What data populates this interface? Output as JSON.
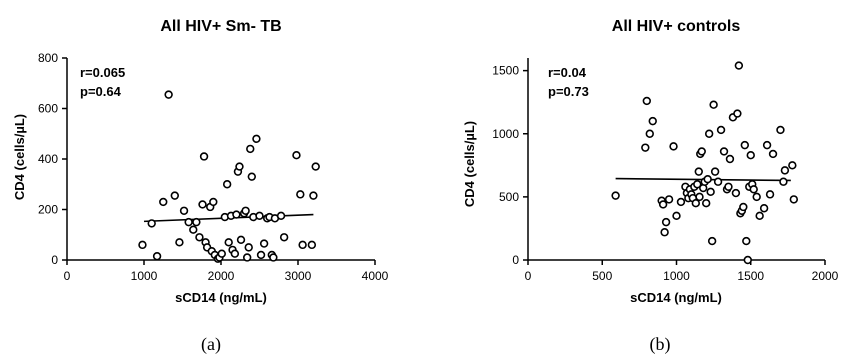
{
  "chart_data": [
    {
      "type": "scatter",
      "title": "All HIV+ Sm- TB",
      "xlabel": "sCD14 (ng/mL)",
      "ylabel": "CD4 (cells/µL)",
      "xlim": [
        0,
        4000
      ],
      "ylim": [
        0,
        800
      ],
      "xticks": [
        0,
        1000,
        2000,
        3000,
        4000
      ],
      "yticks": [
        0,
        200,
        400,
        600,
        800
      ],
      "stats": [
        "r=0.065",
        "p=0.64"
      ],
      "panel_label": "(a)",
      "regression": {
        "x": [
          1000,
          3200
        ],
        "y": [
          153,
          180
        ]
      },
      "points": [
        [
          980,
          60
        ],
        [
          1100,
          145
        ],
        [
          1170,
          15
        ],
        [
          1250,
          230
        ],
        [
          1320,
          655
        ],
        [
          1400,
          255
        ],
        [
          1460,
          70
        ],
        [
          1520,
          195
        ],
        [
          1580,
          150
        ],
        [
          1640,
          120
        ],
        [
          1680,
          150
        ],
        [
          1720,
          90
        ],
        [
          1760,
          220
        ],
        [
          1780,
          410
        ],
        [
          1800,
          70
        ],
        [
          1820,
          50
        ],
        [
          1860,
          210
        ],
        [
          1880,
          35
        ],
        [
          1900,
          230
        ],
        [
          1920,
          20
        ],
        [
          1960,
          5
        ],
        [
          1980,
          10
        ],
        [
          2010,
          25
        ],
        [
          2050,
          170
        ],
        [
          2080,
          300
        ],
        [
          2100,
          70
        ],
        [
          2130,
          175
        ],
        [
          2150,
          40
        ],
        [
          2180,
          25
        ],
        [
          2200,
          180
        ],
        [
          2220,
          350
        ],
        [
          2240,
          370
        ],
        [
          2260,
          80
        ],
        [
          2300,
          185
        ],
        [
          2320,
          195
        ],
        [
          2340,
          10
        ],
        [
          2360,
          50
        ],
        [
          2380,
          440
        ],
        [
          2400,
          330
        ],
        [
          2420,
          170
        ],
        [
          2460,
          480
        ],
        [
          2500,
          175
        ],
        [
          2520,
          20
        ],
        [
          2560,
          65
        ],
        [
          2600,
          165
        ],
        [
          2630,
          170
        ],
        [
          2660,
          20
        ],
        [
          2680,
          10
        ],
        [
          2700,
          165
        ],
        [
          2780,
          175
        ],
        [
          2820,
          90
        ],
        [
          2980,
          415
        ],
        [
          3030,
          260
        ],
        [
          3060,
          60
        ],
        [
          3180,
          60
        ],
        [
          3200,
          255
        ],
        [
          3230,
          370
        ]
      ]
    },
    {
      "type": "scatter",
      "title": "All HIV+ controls",
      "xlabel": "sCD14 (ng/mL)",
      "ylabel": "CD4 (cells/µL)",
      "xlim": [
        0,
        2000
      ],
      "ylim": [
        0,
        1600
      ],
      "xticks": [
        0,
        500,
        1000,
        1500,
        2000
      ],
      "yticks": [
        0,
        500,
        1000,
        1500
      ],
      "stats": [
        "r=0.04",
        "p=0.73"
      ],
      "panel_label": "(b)",
      "regression": {
        "x": [
          590,
          1770
        ],
        "y": [
          645,
          630
        ]
      },
      "points": [
        [
          590,
          510
        ],
        [
          790,
          890
        ],
        [
          800,
          1260
        ],
        [
          820,
          1000
        ],
        [
          840,
          1100
        ],
        [
          900,
          470
        ],
        [
          910,
          440
        ],
        [
          920,
          220
        ],
        [
          930,
          300
        ],
        [
          950,
          480
        ],
        [
          980,
          900
        ],
        [
          1000,
          350
        ],
        [
          1030,
          460
        ],
        [
          1060,
          580
        ],
        [
          1070,
          530
        ],
        [
          1080,
          490
        ],
        [
          1090,
          560
        ],
        [
          1100,
          520
        ],
        [
          1110,
          490
        ],
        [
          1120,
          580
        ],
        [
          1130,
          450
        ],
        [
          1140,
          600
        ],
        [
          1150,
          700
        ],
        [
          1155,
          500
        ],
        [
          1160,
          840
        ],
        [
          1170,
          860
        ],
        [
          1180,
          570
        ],
        [
          1190,
          620
        ],
        [
          1200,
          450
        ],
        [
          1210,
          640
        ],
        [
          1220,
          1000
        ],
        [
          1230,
          540
        ],
        [
          1240,
          150
        ],
        [
          1250,
          1230
        ],
        [
          1260,
          700
        ],
        [
          1280,
          620
        ],
        [
          1300,
          1030
        ],
        [
          1320,
          860
        ],
        [
          1340,
          560
        ],
        [
          1350,
          580
        ],
        [
          1360,
          800
        ],
        [
          1380,
          1130
        ],
        [
          1400,
          530
        ],
        [
          1410,
          1160
        ],
        [
          1420,
          1540
        ],
        [
          1430,
          370
        ],
        [
          1440,
          390
        ],
        [
          1450,
          420
        ],
        [
          1460,
          910
        ],
        [
          1470,
          150
        ],
        [
          1480,
          0
        ],
        [
          1490,
          580
        ],
        [
          1500,
          830
        ],
        [
          1510,
          600
        ],
        [
          1520,
          560
        ],
        [
          1540,
          500
        ],
        [
          1560,
          350
        ],
        [
          1590,
          410
        ],
        [
          1610,
          910
        ],
        [
          1630,
          520
        ],
        [
          1650,
          840
        ],
        [
          1700,
          1030
        ],
        [
          1720,
          620
        ],
        [
          1730,
          710
        ],
        [
          1780,
          750
        ],
        [
          1790,
          480
        ]
      ]
    }
  ]
}
